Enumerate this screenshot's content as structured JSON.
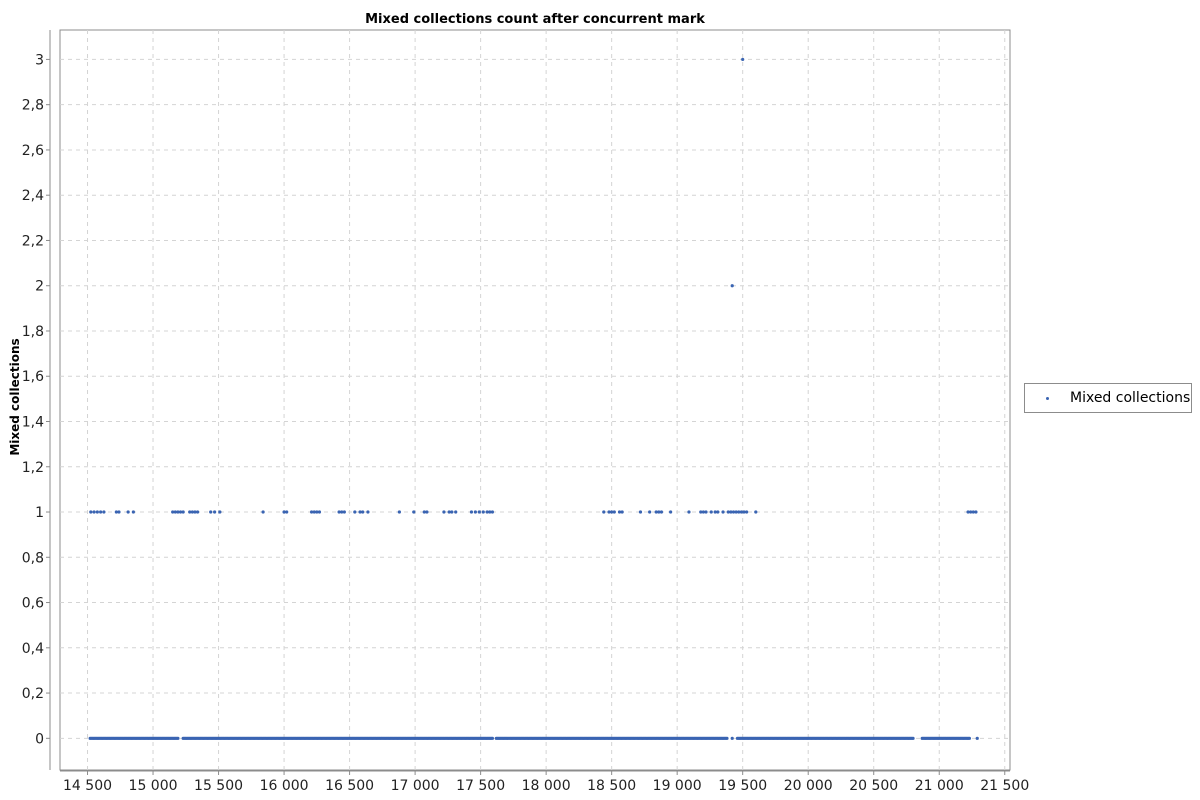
{
  "chart_data": {
    "type": "scatter",
    "title": "Mixed collections count after concurrent mark",
    "xlabel": "",
    "ylabel": "Mixed collections",
    "xlim": [
      14290,
      21540
    ],
    "ylim": [
      -0.14,
      3.13
    ],
    "x_ticks": [
      14500,
      15000,
      15500,
      16000,
      16500,
      17000,
      17500,
      18000,
      18500,
      19000,
      19500,
      20000,
      20500,
      21000,
      21500
    ],
    "x_tick_labels": [
      "14 500",
      "15 000",
      "15 500",
      "16 000",
      "16 500",
      "17 000",
      "17 500",
      "18 000",
      "18 500",
      "19 000",
      "19 500",
      "20 000",
      "20 500",
      "21 000",
      "21 500"
    ],
    "y_ticks": [
      0,
      0.2,
      0.4,
      0.6,
      0.8,
      1,
      1.2,
      1.4,
      1.6,
      1.8,
      2,
      2.2,
      2.4,
      2.6,
      2.8,
      3
    ],
    "y_tick_labels": [
      "0",
      "0,2",
      "0,4",
      "0,6",
      "0,8",
      "1",
      "1,2",
      "1,4",
      "1,6",
      "1,8",
      "2",
      "2,2",
      "2,4",
      "2,6",
      "2,8",
      "3"
    ],
    "grid": true,
    "legend_position": "right",
    "series": [
      {
        "name": "Mixed collections",
        "color": "#3a64b2",
        "points": [
          [
            19500,
            3
          ],
          [
            19420,
            2
          ],
          [
            14525,
            1
          ],
          [
            14550,
            1
          ],
          [
            14575,
            1
          ],
          [
            14600,
            1
          ],
          [
            14625,
            1
          ],
          [
            14720,
            1
          ],
          [
            14740,
            1
          ],
          [
            14810,
            1
          ],
          [
            14850,
            1
          ],
          [
            15150,
            1
          ],
          [
            15170,
            1
          ],
          [
            15190,
            1
          ],
          [
            15210,
            1
          ],
          [
            15230,
            1
          ],
          [
            15280,
            1
          ],
          [
            15300,
            1
          ],
          [
            15320,
            1
          ],
          [
            15340,
            1
          ],
          [
            15440,
            1
          ],
          [
            15470,
            1
          ],
          [
            15510,
            1
          ],
          [
            15840,
            1
          ],
          [
            16000,
            1
          ],
          [
            16020,
            1
          ],
          [
            16210,
            1
          ],
          [
            16230,
            1
          ],
          [
            16250,
            1
          ],
          [
            16270,
            1
          ],
          [
            16420,
            1
          ],
          [
            16440,
            1
          ],
          [
            16460,
            1
          ],
          [
            16540,
            1
          ],
          [
            16580,
            1
          ],
          [
            16600,
            1
          ],
          [
            16640,
            1
          ],
          [
            16880,
            1
          ],
          [
            16990,
            1
          ],
          [
            17070,
            1
          ],
          [
            17090,
            1
          ],
          [
            17220,
            1
          ],
          [
            17260,
            1
          ],
          [
            17280,
            1
          ],
          [
            17310,
            1
          ],
          [
            17430,
            1
          ],
          [
            17460,
            1
          ],
          [
            17490,
            1
          ],
          [
            17520,
            1
          ],
          [
            17550,
            1
          ],
          [
            17570,
            1
          ],
          [
            17590,
            1
          ],
          [
            18440,
            1
          ],
          [
            18480,
            1
          ],
          [
            18500,
            1
          ],
          [
            18520,
            1
          ],
          [
            18560,
            1
          ],
          [
            18580,
            1
          ],
          [
            18720,
            1
          ],
          [
            18790,
            1
          ],
          [
            18840,
            1
          ],
          [
            18860,
            1
          ],
          [
            18880,
            1
          ],
          [
            18950,
            1
          ],
          [
            19090,
            1
          ],
          [
            19180,
            1
          ],
          [
            19200,
            1
          ],
          [
            19220,
            1
          ],
          [
            19260,
            1
          ],
          [
            19290,
            1
          ],
          [
            19310,
            1
          ],
          [
            19350,
            1
          ],
          [
            19390,
            1
          ],
          [
            19410,
            1
          ],
          [
            19430,
            1
          ],
          [
            19450,
            1
          ],
          [
            19470,
            1
          ],
          [
            19490,
            1
          ],
          [
            19510,
            1
          ],
          [
            19530,
            1
          ],
          [
            19600,
            1
          ],
          [
            21220,
            1
          ],
          [
            21240,
            1
          ],
          [
            21260,
            1
          ],
          [
            21280,
            1
          ]
        ],
        "zero_runs": [
          [
            14520,
            15190,
            10
          ],
          [
            15230,
            17590,
            10
          ],
          [
            17620,
            19380,
            10
          ],
          [
            19460,
            20800,
            10
          ],
          [
            20870,
            21230,
            10
          ]
        ],
        "zero_points": [
          19420,
          21290
        ]
      }
    ]
  }
}
